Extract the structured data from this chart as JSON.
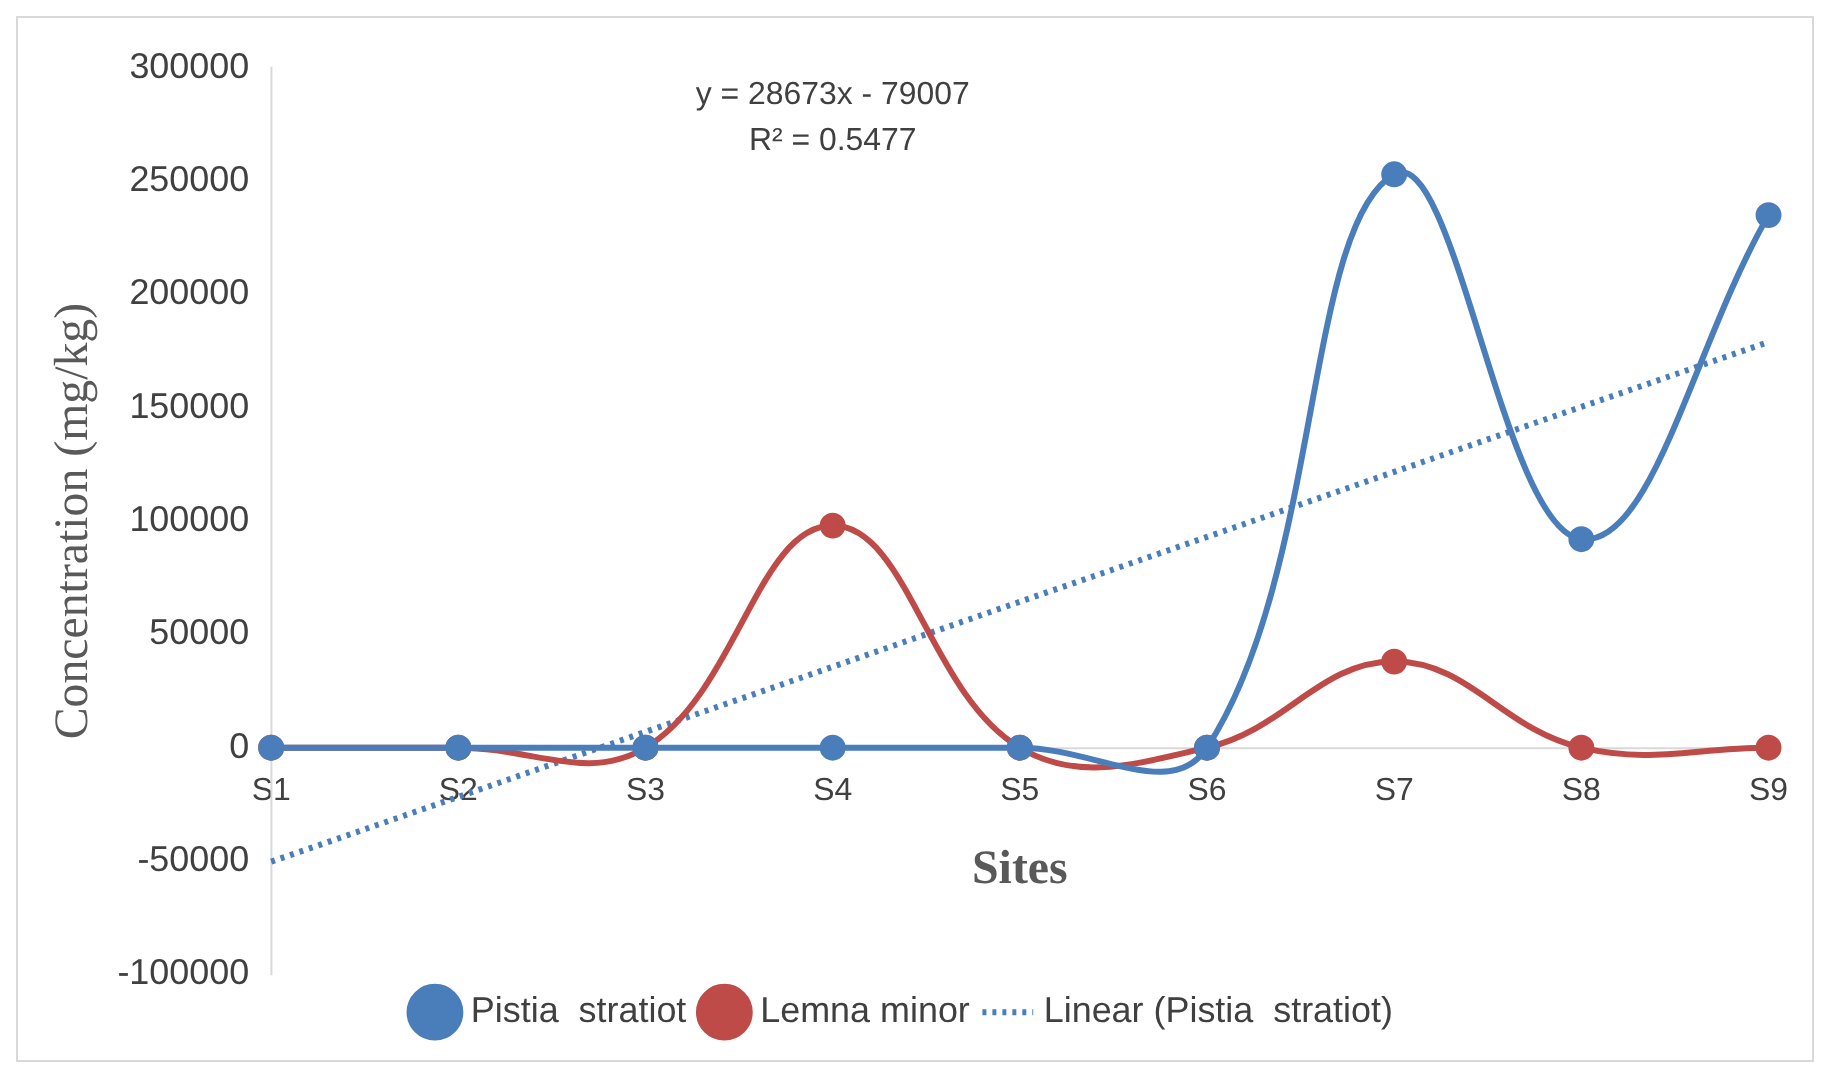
{
  "chart_data": {
    "type": "line",
    "xlabel": "Sites",
    "ylabel": "Concentration (mg/kg)",
    "categories": [
      "S1",
      "S2",
      "S3",
      "S4",
      "S5",
      "S6",
      "S7",
      "S8",
      "S9"
    ],
    "series": [
      {
        "name": "Pistia  stratiot",
        "color": "#4a7ebb",
        "values": [
          0,
          0,
          0,
          0,
          0,
          0,
          253000,
          92000,
          235000
        ],
        "marker": "circle",
        "line_style": "solid"
      },
      {
        "name": "Lemna minor",
        "color": "#be4b48",
        "values": [
          0,
          0,
          0,
          98000,
          0,
          0,
          38000,
          0,
          0
        ],
        "marker": "circle",
        "line_style": "solid"
      },
      {
        "name": "Linear (Pistia  stratiot)",
        "color": "#4a7ebb",
        "values": [
          -50300,
          -21700,
          7000,
          35700,
          64400,
          93000,
          121700,
          150400,
          179000
        ],
        "marker": "none",
        "line_style": "dotted"
      }
    ],
    "ylim": [
      -100000,
      300000
    ],
    "yticks": [
      -100000,
      -50000,
      0,
      50000,
      100000,
      150000,
      200000,
      250000,
      300000
    ],
    "grid": false,
    "legend": "bottom",
    "annotations": [
      "y = 28673x - 79007",
      "R² = 0.5477"
    ]
  }
}
